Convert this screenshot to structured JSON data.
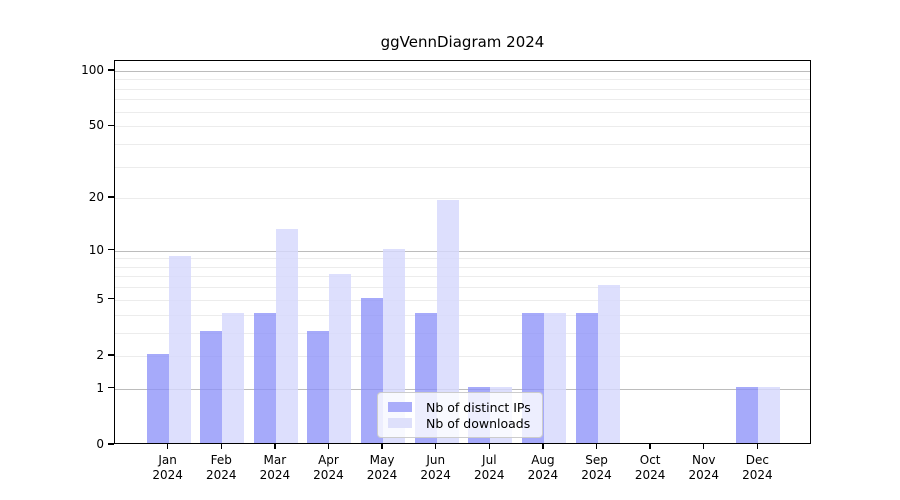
{
  "title": "ggVennDiagram 2024",
  "colors": {
    "ips_bar": "rgba(141,146,248,0.78)",
    "downloads_bar": "rgba(213,216,252,0.82)",
    "ips_swatch": "#aaadfa",
    "downloads_swatch": "#dee0fb",
    "grid_major": "#bcbcbc",
    "grid_minor": "#ececec",
    "spine": "#000000"
  },
  "legend": {
    "items": [
      {
        "label": "Nb of distinct IPs",
        "color_key": "ips_swatch"
      },
      {
        "label": "Nb of downloads",
        "color_key": "downloads_swatch"
      }
    ]
  },
  "chart_data": {
    "type": "bar",
    "title": "ggVennDiagram 2024",
    "xlabel": "",
    "ylabel": "",
    "scale": "log1p",
    "ylim": [
      0,
      113
    ],
    "grid": true,
    "legend_position": "inside-bottom-center",
    "categories": [
      {
        "month": "Jan",
        "year": "2024"
      },
      {
        "month": "Feb",
        "year": "2024"
      },
      {
        "month": "Mar",
        "year": "2024"
      },
      {
        "month": "Apr",
        "year": "2024"
      },
      {
        "month": "May",
        "year": "2024"
      },
      {
        "month": "Jun",
        "year": "2024"
      },
      {
        "month": "Jul",
        "year": "2024"
      },
      {
        "month": "Aug",
        "year": "2024"
      },
      {
        "month": "Sep",
        "year": "2024"
      },
      {
        "month": "Oct",
        "year": "2024"
      },
      {
        "month": "Nov",
        "year": "2024"
      },
      {
        "month": "Dec",
        "year": "2024"
      }
    ],
    "series": [
      {
        "name": "Nb of distinct IPs",
        "values": [
          2,
          3,
          4,
          3,
          5,
          4,
          1,
          4,
          4,
          0,
          0,
          1
        ]
      },
      {
        "name": "Nb of downloads",
        "values": [
          9,
          4,
          13,
          7,
          10,
          19,
          1,
          4,
          6,
          0,
          0,
          1
        ]
      }
    ],
    "yticks": [
      0,
      1,
      2,
      5,
      10,
      20,
      50,
      100
    ],
    "major_gridlines": [
      1,
      10,
      100
    ],
    "minor_gridlines": [
      2,
      3,
      4,
      5,
      6,
      7,
      8,
      9,
      20,
      30,
      40,
      50,
      60,
      70,
      80,
      90
    ]
  }
}
